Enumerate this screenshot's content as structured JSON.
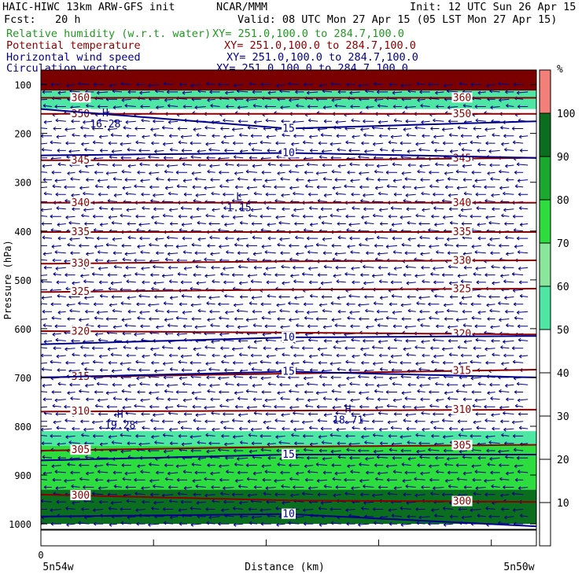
{
  "header": {
    "model": "HAIC-HIWC 13km ARW-GFS init",
    "center": "NCAR/MMM",
    "init": "Init: 12 UTC Sun 26 Apr 15",
    "fcst": "Fcst:   20 h",
    "valid": "Valid: 08 UTC Mon 27 Apr 15 (05 LST Mon 27 Apr 15)",
    "fields": [
      {
        "name": "Relative humidity (w.r.t. water)",
        "xy": "XY= 251.0,100.0 to 284.7,100.0",
        "color": "#1f9a1f"
      },
      {
        "name": "Potential temperature",
        "xy": "XY= 251.0,100.0 to 284.7,100.0",
        "color": "#8b0000"
      },
      {
        "name": "Horizontal wind speed",
        "xy": "XY= 251.0,100.0 to 284.7,100.0",
        "color": "#00008b"
      },
      {
        "name": "Circulation vectors",
        "xy": "XY= 251.0,100.0 to 284.7,100.0",
        "color": "#00008b"
      }
    ]
  },
  "chart_data": {
    "type": "heatmap",
    "ylabel": "Pressure (hPa)",
    "xlabel": "Distance (km)",
    "x_tick_label": "0",
    "x_left_label": "5n54w",
    "x_right_label": "5n50w",
    "y_ticks": [
      100,
      200,
      300,
      400,
      500,
      600,
      700,
      800,
      900,
      1000
    ],
    "ylim": [
      70,
      1045
    ],
    "xlim": [
      0,
      1
    ],
    "colorbar": {
      "unit": "%",
      "ticks": [
        10,
        20,
        30,
        40,
        50,
        60,
        70,
        80,
        90,
        100
      ],
      "bins": [
        {
          "lo": 0,
          "hi": 50,
          "color": "#ffffff"
        },
        {
          "lo": 50,
          "hi": 60,
          "color": "#4de6a3"
        },
        {
          "lo": 60,
          "hi": 70,
          "color": "#8ae69a"
        },
        {
          "lo": 70,
          "hi": 80,
          "color": "#2ddc3d"
        },
        {
          "lo": 80,
          "hi": 90,
          "color": "#1aa82e"
        },
        {
          "lo": 90,
          "hi": 100,
          "color": "#0b6e1e"
        },
        {
          "lo": 100,
          "hi": 110,
          "color": "#f28078"
        }
      ]
    },
    "top_band_color": "#7a0000",
    "theta_contours": [
      {
        "value": 360,
        "p": [
          127,
          127,
          127
        ]
      },
      {
        "value": 350,
        "p": [
          160,
          160,
          160
        ]
      },
      {
        "value": 345,
        "p": [
          255,
          255,
          250
        ]
      },
      {
        "value": 340,
        "p": [
          342,
          342,
          342
        ]
      },
      {
        "value": 335,
        "p": [
          402,
          402,
          402
        ]
      },
      {
        "value": 330,
        "p": [
          467,
          462,
          460
        ]
      },
      {
        "value": 325,
        "p": [
          525,
          520,
          518
        ]
      },
      {
        "value": 320,
        "p": [
          605,
          608,
          612
        ]
      },
      {
        "value": 315,
        "p": [
          700,
          692,
          684
        ]
      },
      {
        "value": 310,
        "p": [
          770,
          768,
          766
        ]
      },
      {
        "value": 305,
        "p": [
          850,
          842,
          838
        ]
      },
      {
        "value": 300,
        "p": [
          940,
          952,
          955
        ]
      }
    ],
    "wind_contours": [
      {
        "value": 15,
        "p": [
          150,
          190,
          175
        ]
      },
      {
        "value": 10,
        "p": [
          245,
          240,
          250
        ]
      },
      {
        "value": 10,
        "p": [
          632,
          618,
          615
        ]
      },
      {
        "value": 15,
        "p": [
          700,
          688,
          700
        ]
      },
      {
        "value": 15,
        "p": [
          870,
          858,
          858
        ]
      },
      {
        "value": 10,
        "p": [
          985,
          980,
          1005
        ]
      }
    ],
    "extrema": [
      {
        "label": "H",
        "value": "16.28",
        "x": 0.13,
        "p": 178
      },
      {
        "label": "L",
        "value": "1.15",
        "x": 0.4,
        "p": 350
      },
      {
        "label": "H",
        "value": "19.28",
        "x": 0.16,
        "p": 795
      },
      {
        "label": "H",
        "value": "18.71",
        "x": 0.62,
        "p": 785
      }
    ],
    "rh_regions": [
      {
        "p_top": 93,
        "p_bot": 150,
        "value": 55
      },
      {
        "p_top": 810,
        "p_bot": 840,
        "value": 55
      },
      {
        "p_top": 840,
        "p_bot": 930,
        "value": 75
      },
      {
        "p_top": 930,
        "p_bot": 1000,
        "value": 95
      }
    ]
  }
}
